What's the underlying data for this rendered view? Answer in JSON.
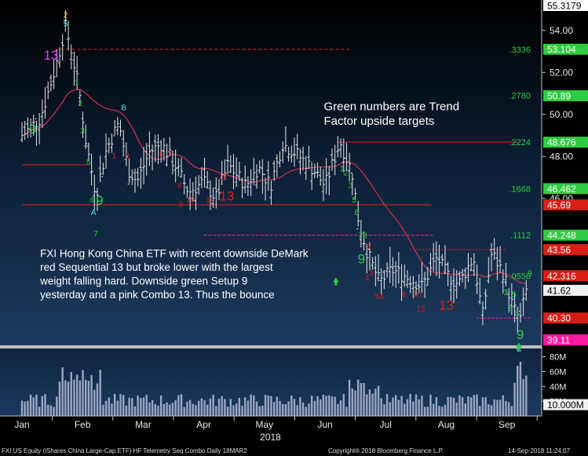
{
  "chart_data": {
    "type": "ohlc",
    "instrument": "FXI US Equity",
    "months": [
      "Jan",
      "Feb",
      "Mar",
      "Apr",
      "May",
      "Jun",
      "Jul",
      "Aug",
      "Sep"
    ],
    "year_label": "2018",
    "y_axis_labels": [
      "54.00",
      "52.00",
      "50.00",
      "48.00",
      "46.00"
    ],
    "ylim": [
      39.0,
      55.3
    ],
    "volume_labels": [
      "80M",
      "60M",
      "40M",
      "20M"
    ],
    "volume_ylim": [
      0,
      85
    ],
    "current_volume": "10.000M",
    "price_tags": [
      {
        "value": 55.3179,
        "label": "55.3179",
        "color": "#ffffff"
      },
      {
        "value": 53.104,
        "label": "53.104",
        "color": "#2ecc40"
      },
      {
        "value": 50.89,
        "label": "50.89",
        "color": "#2ecc40"
      },
      {
        "value": 48.676,
        "label": "48.676",
        "color": "#2ecc40"
      },
      {
        "value": 46.462,
        "label": "46.462",
        "color": "#2ecc40"
      },
      {
        "value": 45.69,
        "label": "45.69",
        "color": "#d91e18"
      },
      {
        "value": 44.248,
        "label": "44.248",
        "color": "#2ecc40"
      },
      {
        "value": 43.56,
        "label": "43.56",
        "color": "#d91e18"
      },
      {
        "value": 42.316,
        "label": "42.316",
        "color": "#d91e18"
      },
      {
        "value": 41.62,
        "label": "41.62",
        "color": "#ffffff"
      },
      {
        "value": 40.3,
        "label": "40.30",
        "color": "#d91e18"
      },
      {
        "value": 39.11,
        "label": "39.11",
        "color": "#ff1aa0"
      }
    ],
    "fib_levels": [
      {
        "label": ".3336",
        "value": 53.1
      },
      {
        "label": ".2780",
        "value": 50.9
      },
      {
        "label": ".2224",
        "value": 48.68
      },
      {
        "label": ".1668",
        "value": 46.46
      },
      {
        "label": ".1112",
        "value": 44.25
      },
      {
        "label": ".0556",
        "value": 42.3
      }
    ],
    "annotations": [
      {
        "text": "Green numbers are Trend",
        "x_month": 4.98,
        "y": 50.2
      },
      {
        "text": "Factor upside targets",
        "x_month": 4.98,
        "y": 49.5
      },
      {
        "text": "FXI Hong Kong China ETF with recent downside DeMark",
        "x_month": 0.3,
        "y": 43.2
      },
      {
        "text": "red Sequential 13 but broke lower with the largest",
        "x_month": 0.3,
        "y": 42.55
      },
      {
        "text": "weight falling hard.  Downside green Setup 9",
        "x_month": 0.3,
        "y": 41.9
      },
      {
        "text": "yesterday and a pink Combo 13.  Thus the bounce",
        "x_month": 0.3,
        "y": 41.25
      }
    ],
    "td_labels": [
      {
        "t": "2",
        "x": 0.72,
        "y": 54.6,
        "c": "#f5d547"
      },
      {
        "t": "5",
        "x": 0.72,
        "y": 54.2,
        "c": "#4de3e3"
      },
      {
        "t": "13",
        "x": 0.48,
        "y": 52.6,
        "c": "#e040fb",
        "big": true
      },
      {
        "t": "9",
        "x": 0.18,
        "y": 49.1,
        "c": "#2ecc40",
        "big": true
      },
      {
        "t": "1",
        "x": 0.9,
        "y": 51.4,
        "c": "#2ecc40"
      },
      {
        "t": "2",
        "x": 0.96,
        "y": 50.4,
        "c": "#2ecc40"
      },
      {
        "t": "3",
        "x": 1.0,
        "y": 49.1,
        "c": "#2ecc40"
      },
      {
        "t": "5",
        "x": 1.1,
        "y": 47.6,
        "c": "#2ecc40"
      },
      {
        "t": "6",
        "x": 1.16,
        "y": 45.8,
        "c": "#2ecc40"
      },
      {
        "t": "9",
        "x": 1.28,
        "y": 45.7,
        "c": "#2ecc40",
        "big": true
      },
      {
        "t": "A",
        "x": 1.18,
        "y": 45.2,
        "c": "#4de3e3"
      },
      {
        "t": "7",
        "x": 1.22,
        "y": 44.2,
        "c": "#2ecc40"
      },
      {
        "t": "B",
        "x": 1.68,
        "y": 50.2,
        "c": "#4de3e3"
      },
      {
        "t": "1",
        "x": 1.52,
        "y": 47.9,
        "c": "#d91e18"
      },
      {
        "t": "3",
        "x": 1.74,
        "y": 47.9,
        "c": "#d91e18"
      },
      {
        "t": "6",
        "x": 2.3,
        "y": 48.0,
        "c": "#d91e18"
      },
      {
        "t": "7",
        "x": 2.45,
        "y": 48.0,
        "c": "#d91e18"
      },
      {
        "t": "8",
        "x": 2.6,
        "y": 46.5,
        "c": "#d91e18"
      },
      {
        "t": "9",
        "x": 2.62,
        "y": 45.6,
        "c": "#d91e18"
      },
      {
        "t": "10",
        "x": 2.78,
        "y": 45.8,
        "c": "#d91e18"
      },
      {
        "t": "11",
        "x": 3.1,
        "y": 45.8,
        "c": "#d91e18"
      },
      {
        "t": "12",
        "x": 3.32,
        "y": 46.9,
        "c": "#d91e18"
      },
      {
        "t": "13",
        "x": 3.38,
        "y": 45.9,
        "c": "#d91e18",
        "big": true
      },
      {
        "t": "1",
        "x": 5.28,
        "y": 47.3,
        "c": "#2ecc40"
      },
      {
        "t": "2",
        "x": 5.34,
        "y": 47.1,
        "c": "#2ecc40"
      },
      {
        "t": "3",
        "x": 5.42,
        "y": 46.5,
        "c": "#2ecc40"
      },
      {
        "t": "5",
        "x": 5.48,
        "y": 45.8,
        "c": "#2ecc40"
      },
      {
        "t": "6",
        "x": 5.52,
        "y": 45.2,
        "c": "#2ecc40"
      },
      {
        "t": "7",
        "x": 5.58,
        "y": 44.1,
        "c": "#2ecc40"
      },
      {
        "t": "8",
        "x": 5.66,
        "y": 44.1,
        "c": "#2ecc40"
      },
      {
        "t": "9",
        "x": 5.6,
        "y": 42.9,
        "c": "#2ecc40",
        "big": true
      },
      {
        "t": "5",
        "x": 5.72,
        "y": 43.6,
        "c": "#d91e18"
      },
      {
        "t": "1",
        "x": 5.7,
        "y": 42.1,
        "c": "#d91e18"
      },
      {
        "t": "3",
        "x": 5.76,
        "y": 42.3,
        "c": "#d91e18"
      },
      {
        "t": "5",
        "x": 5.86,
        "y": 41.2,
        "c": "#d91e18"
      },
      {
        "t": "6",
        "x": 5.94,
        "y": 41.2,
        "c": "#d91e18"
      },
      {
        "t": "8",
        "x": 6.3,
        "y": 41.3,
        "c": "#d91e18"
      },
      {
        "t": "10",
        "x": 6.52,
        "y": 41.3,
        "c": "#d91e18"
      },
      {
        "t": "12",
        "x": 6.58,
        "y": 40.6,
        "c": "#d91e18"
      },
      {
        "t": "13",
        "x": 7.0,
        "y": 40.7,
        "c": "#d91e18",
        "big": true
      },
      {
        "t": "3",
        "x": 7.98,
        "y": 41.4,
        "c": "#2ecc40"
      },
      {
        "t": "4",
        "x": 8.06,
        "y": 40.6,
        "c": "#2ecc40"
      },
      {
        "t": "5",
        "x": 8.12,
        "y": 41.3,
        "c": "#2ecc40"
      },
      {
        "t": "6",
        "x": 8.16,
        "y": 40.4,
        "c": "#2ecc40"
      },
      {
        "t": "9",
        "x": 8.22,
        "y": 39.3,
        "c": "#2ecc40",
        "big": true
      },
      {
        "t": "C",
        "x": 8.2,
        "y": 38.7,
        "c": "#4de3e3"
      },
      {
        "t": "9",
        "x": 8.38,
        "y": 42.3,
        "c": "#2ecc40"
      }
    ],
    "arrows": [
      {
        "x": 5.18,
        "y": 42.0,
        "c": "#2ecc40"
      },
      {
        "x": 8.2,
        "y": 38.9,
        "c": "#2ecc40"
      }
    ],
    "colors": {
      "ma": "#d0324a",
      "fib_text": "#2ecc40",
      "horiz_red": "#e02020",
      "horiz_pink": "#ff1aa0",
      "bar": "#e8e8e8",
      "volume": "#9aa7c4"
    }
  },
  "footer": {
    "left": "FXI US Equity (iShares China Large-Cap ETF) HF Telemetry Seq Combo  Daily 18MAR2",
    "center": "Copyright® 2018 Bloomberg Finance L.P.",
    "right": "14-Sep-2018 11:24:07"
  }
}
